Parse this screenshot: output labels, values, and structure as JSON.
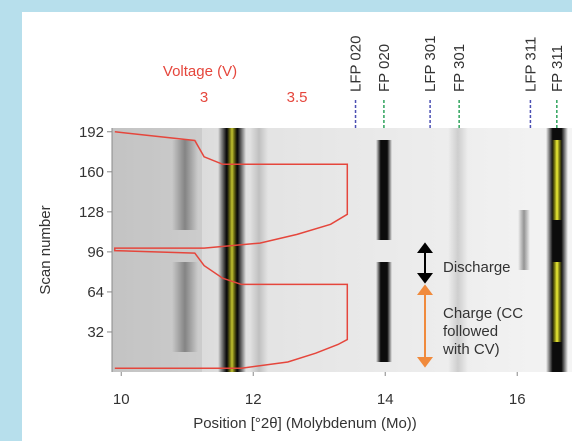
{
  "chart_data": {
    "type": "heatmap",
    "xlabel": "Position [°2θ] (Molybdenum (Mo))",
    "ylabel": "Scan number",
    "xlim": [
      9.86,
      16.83
    ],
    "xticks": [
      10,
      12,
      14,
      16
    ],
    "ylim": [
      0,
      195
    ],
    "yticks": [
      32,
      64,
      96,
      128,
      160,
      192
    ],
    "x2label": "Voltage (V)",
    "x2lim": [
      2.505,
      4.978
    ],
    "x2ticks": [
      3,
      3.5
    ],
    "x2color": "#e5463c",
    "series": [
      {
        "axis": "x2",
        "color": "#e5463c",
        "x": [
          2.52,
          3.2,
          3.45,
          3.6,
          3.72,
          3.77,
          3.77,
          3.2,
          3.1,
          3.0,
          2.95,
          2.52,
          2.52,
          3.0,
          3.3,
          3.5,
          3.68,
          3.77,
          3.77,
          3.1,
          3.0,
          2.95,
          2.52
        ],
        "y": [
          3,
          3,
          8,
          15,
          22,
          26,
          70,
          70,
          75,
          85,
          95,
          97,
          99,
          99,
          103,
          110,
          118,
          126,
          166,
          166,
          172,
          185,
          192
        ]
      }
    ],
    "reflections": [
      {
        "label": "LFP 020",
        "x": 13.55,
        "color": "#4b4fb3"
      },
      {
        "label": "FP 020",
        "x": 13.98,
        "color": "#2ea35c"
      },
      {
        "label": "LFP 301",
        "x": 14.68,
        "color": "#4b4fb3"
      },
      {
        "label": "FP 301",
        "x": 15.12,
        "color": "#2ea35c"
      },
      {
        "label": "LFP 311",
        "x": 16.2,
        "color": "#4b4fb3"
      },
      {
        "label": "FP 311",
        "x": 16.6,
        "color": "#2ea35c"
      }
    ],
    "annotations": {
      "discharge": "Discharge",
      "charge": [
        "Charge (CC",
        "followed",
        "with CV)"
      ]
    }
  }
}
